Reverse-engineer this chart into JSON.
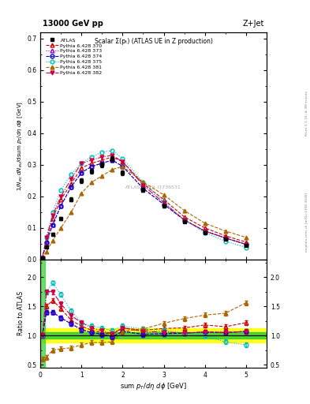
{
  "title_top": "13000 GeV pp",
  "title_right": "Z+Jet",
  "main_title": "Scalar Σ(pₜ) (ATLAS UE in Z production)",
  "watermark": "ATLAS_2019_I1736531",
  "right_label": "Rivet 3.1.10, ≥ 3M events",
  "right_label2": "mcplots.cern.ch [arXiv:1306.3436]",
  "ylim_main": [
    0.0,
    0.72
  ],
  "ylim_ratio": [
    0.45,
    2.3
  ],
  "xlim": [
    0.0,
    5.5
  ],
  "xdata": [
    0.05,
    0.15,
    0.3,
    0.5,
    0.75,
    1.0,
    1.25,
    1.5,
    1.75,
    2.0,
    2.5,
    3.0,
    3.5,
    4.0,
    4.5,
    5.0
  ],
  "atlas_y": [
    0.005,
    0.04,
    0.08,
    0.13,
    0.19,
    0.25,
    0.28,
    0.3,
    0.32,
    0.275,
    0.22,
    0.17,
    0.12,
    0.085,
    0.065,
    0.045
  ],
  "atlas_yerr": [
    0.002,
    0.003,
    0.004,
    0.005,
    0.006,
    0.007,
    0.007,
    0.007,
    0.007,
    0.007,
    0.006,
    0.005,
    0.004,
    0.004,
    0.003,
    0.003
  ],
  "band_green": 0.05,
  "band_yellow": 0.12,
  "series": [
    {
      "label": "Pythia 6.428 370",
      "color": "#cc0000",
      "linestyle": "--",
      "marker": "^",
      "filled": false,
      "y": [
        0.005,
        0.06,
        0.13,
        0.19,
        0.24,
        0.29,
        0.305,
        0.315,
        0.325,
        0.31,
        0.24,
        0.19,
        0.135,
        0.1,
        0.075,
        0.055
      ],
      "ratio": [
        1.0,
        1.5,
        1.6,
        1.46,
        1.26,
        1.16,
        1.09,
        1.05,
        1.02,
        1.13,
        1.09,
        1.12,
        1.13,
        1.18,
        1.15,
        1.22
      ]
    },
    {
      "label": "Pythia 6.428 373",
      "color": "#9900cc",
      "linestyle": ":",
      "marker": "^",
      "filled": false,
      "y": [
        0.005,
        0.055,
        0.11,
        0.17,
        0.23,
        0.275,
        0.295,
        0.305,
        0.315,
        0.295,
        0.225,
        0.175,
        0.125,
        0.09,
        0.068,
        0.048
      ],
      "ratio": [
        1.0,
        1.4,
        1.4,
        1.3,
        1.2,
        1.1,
        1.05,
        1.02,
        0.98,
        1.07,
        1.02,
        1.03,
        1.04,
        1.06,
        1.05,
        1.07
      ]
    },
    {
      "label": "Pythia 6.428 374",
      "color": "#0000cc",
      "linestyle": "--",
      "marker": "o",
      "filled": false,
      "y": [
        0.005,
        0.055,
        0.11,
        0.17,
        0.23,
        0.275,
        0.295,
        0.305,
        0.315,
        0.295,
        0.225,
        0.175,
        0.125,
        0.09,
        0.068,
        0.048
      ],
      "ratio": [
        1.0,
        1.4,
        1.4,
        1.3,
        1.2,
        1.1,
        1.05,
        1.02,
        0.98,
        1.07,
        1.02,
        1.03,
        1.04,
        1.06,
        1.05,
        1.07
      ]
    },
    {
      "label": "Pythia 6.428 375",
      "color": "#00bbbb",
      "linestyle": ":",
      "marker": "o",
      "filled": false,
      "y": [
        0.005,
        0.07,
        0.15,
        0.22,
        0.27,
        0.305,
        0.325,
        0.34,
        0.345,
        0.32,
        0.245,
        0.185,
        0.125,
        0.085,
        0.058,
        0.038
      ],
      "ratio": [
        1.0,
        1.75,
        1.9,
        1.7,
        1.42,
        1.22,
        1.16,
        1.13,
        1.08,
        1.16,
        1.11,
        1.09,
        1.04,
        1.0,
        0.89,
        0.84
      ]
    },
    {
      "label": "Pythia 6.428 381",
      "color": "#aa6600",
      "linestyle": "--",
      "marker": "^",
      "filled": true,
      "y": [
        0.003,
        0.025,
        0.06,
        0.1,
        0.15,
        0.21,
        0.245,
        0.265,
        0.285,
        0.295,
        0.245,
        0.205,
        0.155,
        0.115,
        0.09,
        0.07
      ],
      "ratio": [
        0.6,
        0.63,
        0.75,
        0.77,
        0.79,
        0.84,
        0.88,
        0.88,
        0.89,
        1.07,
        1.11,
        1.21,
        1.29,
        1.35,
        1.38,
        1.56
      ]
    },
    {
      "label": "Pythia 6.428 382",
      "color": "#cc0044",
      "linestyle": "-.",
      "marker": "v",
      "filled": true,
      "y": [
        0.005,
        0.07,
        0.14,
        0.2,
        0.255,
        0.305,
        0.315,
        0.325,
        0.33,
        0.31,
        0.235,
        0.18,
        0.125,
        0.09,
        0.068,
        0.048
      ],
      "ratio": [
        1.0,
        1.75,
        1.75,
        1.54,
        1.34,
        1.22,
        1.13,
        1.08,
        1.03,
        1.13,
        1.07,
        1.06,
        1.04,
        1.06,
        1.05,
        1.07
      ]
    }
  ]
}
